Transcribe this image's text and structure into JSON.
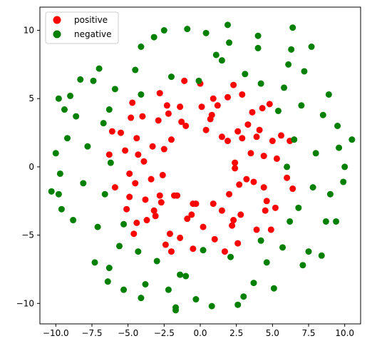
{
  "chart_data": {
    "type": "scatter",
    "title": "",
    "xlabel": "",
    "ylabel": "",
    "xlim": [
      -11.1,
      11.1
    ],
    "ylim": [
      -11.5,
      11.7
    ],
    "x_ticks": [
      -10.0,
      -7.5,
      -5.0,
      -2.5,
      0.0,
      2.5,
      5.0,
      7.5,
      10.0
    ],
    "x_tick_labels": [
      "−10.0",
      "−7.5",
      "−5.0",
      "−2.5",
      "0.0",
      "2.5",
      "5.0",
      "7.5",
      "10.0"
    ],
    "y_ticks": [
      -10,
      -5,
      0,
      5,
      10
    ],
    "y_tick_labels": [
      "−10",
      "−5",
      "0",
      "5",
      "10"
    ],
    "grid": false,
    "legend": {
      "placement": "top-left",
      "entries": [
        {
          "label": "positive",
          "color": "#ff0000"
        },
        {
          "label": "negative",
          "color": "#008000"
        }
      ]
    },
    "series": [
      {
        "name": "positive",
        "color": "#ff0000",
        "description_shape": "ring",
        "radius_range": [
          2.0,
          6.5
        ],
        "points": [
          [
            2.4,
            0.3
          ],
          [
            -2.6,
            -0.6
          ],
          [
            0.4,
            2.7
          ],
          [
            -0.3,
            -2.7
          ],
          [
            1.9,
            1.9
          ],
          [
            -2.0,
            2.0
          ],
          [
            2.0,
            -2.0
          ],
          [
            -1.8,
            -2.1
          ],
          [
            0.8,
            3.8
          ],
          [
            -3.9,
            0.4
          ],
          [
            3.7,
            -1.1
          ],
          [
            -0.9,
            -3.8
          ],
          [
            -1.0,
            3.0
          ],
          [
            2.4,
            -0.1
          ],
          [
            -0.5,
            -2.7
          ],
          [
            0.9,
            -2.7
          ],
          [
            4.1,
            2.7
          ],
          [
            -4.4,
            2.1
          ],
          [
            2.2,
            -4.3
          ],
          [
            -3.1,
            -3.6
          ],
          [
            4.6,
            -2.5
          ],
          [
            -2.3,
            4.5
          ],
          [
            0.9,
            5.0
          ],
          [
            -4.9,
            -0.5
          ],
          [
            5.3,
            0.6
          ],
          [
            -5.2,
            1.2
          ],
          [
            1.0,
            -5.3
          ],
          [
            -1.4,
            -5.2
          ],
          [
            3.6,
            4.0
          ],
          [
            -3.7,
            -3.9
          ],
          [
            4.5,
            -3.2
          ],
          [
            -4.0,
            3.7
          ],
          [
            6.0,
            -0.8
          ],
          [
            -5.9,
            -1.5
          ],
          [
            0.0,
            6.1
          ],
          [
            -0.5,
            -6.0
          ],
          [
            4.3,
            4.3
          ],
          [
            -4.4,
            -4.1
          ],
          [
            3.9,
            -4.6
          ],
          [
            -4.8,
            3.6
          ],
          [
            2.9,
            2.1
          ],
          [
            -2.8,
            -2.1
          ],
          [
            3.2,
            -0.9
          ],
          [
            -3.3,
            1.5
          ],
          [
            1.5,
            -3.2
          ],
          [
            -1.3,
            3.3
          ],
          [
            2.6,
            2.6
          ],
          [
            -2.7,
            -2.6
          ],
          [
            5.6,
            2.3
          ],
          [
            -5.5,
            2.5
          ],
          [
            2.6,
            -5.6
          ],
          [
            -2.4,
            -5.7
          ],
          [
            5.2,
            -3.0
          ],
          [
            -5.1,
            -3.1
          ],
          [
            2.9,
            5.3
          ],
          [
            -2.8,
            5.4
          ],
          [
            6.2,
            1.9
          ],
          [
            -6.3,
            0.9
          ],
          [
            1.7,
            -6.2
          ],
          [
            -1.1,
            6.3
          ],
          [
            3.5,
            1.0
          ],
          [
            -3.4,
            -0.9
          ],
          [
            0.7,
            3.5
          ],
          [
            -0.6,
            -3.5
          ],
          [
            1.2,
            4.5
          ],
          [
            -1.4,
            4.4
          ],
          [
            4.4,
            -1.5
          ],
          [
            -4.5,
            -1.2
          ],
          [
            2.8,
            -3.5
          ],
          [
            -2.9,
            3.4
          ],
          [
            3.3,
            3.1
          ],
          [
            -3.2,
            -3.2
          ],
          [
            0.2,
            -4.4
          ],
          [
            0.1,
            4.4
          ],
          [
            4.4,
            0.8
          ],
          [
            -4.3,
            0.9
          ],
          [
            5.0,
            1.9
          ],
          [
            -4.9,
            -2.2
          ],
          [
            1.9,
            5.1
          ],
          [
            -2.1,
            -4.9
          ],
          [
            4.8,
            4.6
          ],
          [
            -4.7,
            4.7
          ],
          [
            4.9,
            -4.6
          ],
          [
            -4.6,
            -4.9
          ],
          [
            6.4,
            -1.6
          ],
          [
            -6.1,
            2.6
          ],
          [
            2.3,
            6.0
          ],
          [
            -2.0,
            -6.2
          ],
          [
            3.9,
            2.2
          ],
          [
            -3.8,
            -2.4
          ],
          [
            2.3,
            -3.9
          ],
          [
            -2.2,
            3.9
          ],
          [
            1.5,
            2.2
          ],
          [
            -1.6,
            -2.1
          ],
          [
            2.7,
            -1.3
          ],
          [
            -2.5,
            1.3
          ]
        ]
      },
      {
        "name": "negative",
        "color": "#008000",
        "description_shape": "ring",
        "radius_range": [
          5.0,
          10.8
        ],
        "points": [
          [
            8.0,
            1.0
          ],
          [
            -8.1,
            -1.2
          ],
          [
            1.1,
            8.2
          ],
          [
            -1.0,
            -8.0
          ],
          [
            5.8,
            5.8
          ],
          [
            -5.9,
            5.7
          ],
          [
            5.7,
            -5.9
          ],
          [
            -5.6,
            -5.8
          ],
          [
            9.0,
            -2.0
          ],
          [
            -9.2,
            2.1
          ],
          [
            2.0,
            9.1
          ],
          [
            -2.2,
            -9.0
          ],
          [
            7.0,
            4.5
          ],
          [
            -7.1,
            -4.4
          ],
          [
            4.6,
            -7.0
          ],
          [
            -4.5,
            7.1
          ],
          [
            9.6,
            1.4
          ],
          [
            -9.7,
            -0.5
          ],
          [
            0.4,
            9.8
          ],
          [
            -0.3,
            -9.7
          ],
          [
            7.5,
            -6.2
          ],
          [
            -7.4,
            6.3
          ],
          [
            6.1,
            7.5
          ],
          [
            -6.3,
            -7.4
          ],
          [
            6.5,
            2.0
          ],
          [
            -6.6,
            -2.0
          ],
          [
            2.1,
            -6.6
          ],
          [
            -2.0,
            6.6
          ],
          [
            6.8,
            -3.0
          ],
          [
            -6.7,
            3.2
          ],
          [
            3.1,
            6.8
          ],
          [
            -3.0,
            -6.9
          ],
          [
            8.5,
            3.8
          ],
          [
            -8.6,
            3.7
          ],
          [
            3.7,
            -8.5
          ],
          [
            -3.8,
            -8.6
          ],
          [
            8.7,
            -4.0
          ],
          [
            -8.8,
            -3.9
          ],
          [
            4.0,
            8.7
          ],
          [
            -4.1,
            8.8
          ],
          [
            10.0,
            0.0
          ],
          [
            -10.0,
            1.0
          ],
          [
            0.8,
            -10.2
          ],
          [
            -0.9,
            10.1
          ],
          [
            9.5,
            3.0
          ],
          [
            -9.6,
            -3.1
          ],
          [
            3.0,
            -9.5
          ],
          [
            -3.2,
            9.5
          ],
          [
            7.2,
            7.0
          ],
          [
            -7.3,
            -7.0
          ],
          [
            7.1,
            -7.2
          ],
          [
            -7.0,
            7.2
          ],
          [
            5.4,
            4.1
          ],
          [
            -5.3,
            -4.2
          ],
          [
            4.2,
            -5.4
          ],
          [
            -4.1,
            5.3
          ],
          [
            7.8,
            -1.5
          ],
          [
            -7.8,
            1.5
          ],
          [
            1.5,
            7.8
          ],
          [
            -1.4,
            -7.9
          ],
          [
            6.0,
            0.0
          ],
          [
            -6.2,
            0.3
          ],
          [
            0.2,
            -6.1
          ],
          [
            -0.1,
            6.3
          ],
          [
            9.9,
            -1.1
          ],
          [
            -9.8,
            -2.0
          ],
          [
            -2.5,
            10.0
          ],
          [
            2.6,
            -10.1
          ],
          [
            8.9,
            5.3
          ],
          [
            -9.0,
            5.2
          ],
          [
            5.1,
            -8.9
          ],
          [
            -5.3,
            -9.0
          ],
          [
            6.3,
            8.6
          ],
          [
            -6.4,
            -8.4
          ],
          [
            8.4,
            -6.5
          ],
          [
            -8.3,
            6.4
          ],
          [
            4.0,
            9.6
          ],
          [
            -4.1,
            -9.6
          ],
          [
            9.4,
            -4.0
          ],
          [
            -9.4,
            4.2
          ],
          [
            10.5,
            2.0
          ],
          [
            -10.3,
            -1.8
          ],
          [
            1.9,
            10.4
          ],
          [
            -1.7,
            -10.5
          ],
          [
            6.2,
            -4.0
          ],
          [
            -6.3,
            4.2
          ],
          [
            4.2,
            6.1
          ],
          [
            -4.3,
            -6.2
          ],
          [
            6.4,
            10.2
          ],
          [
            -9.8,
            5.0
          ],
          [
            7.7,
            8.8
          ],
          [
            -1.7,
            -10.3
          ]
        ]
      }
    ]
  }
}
